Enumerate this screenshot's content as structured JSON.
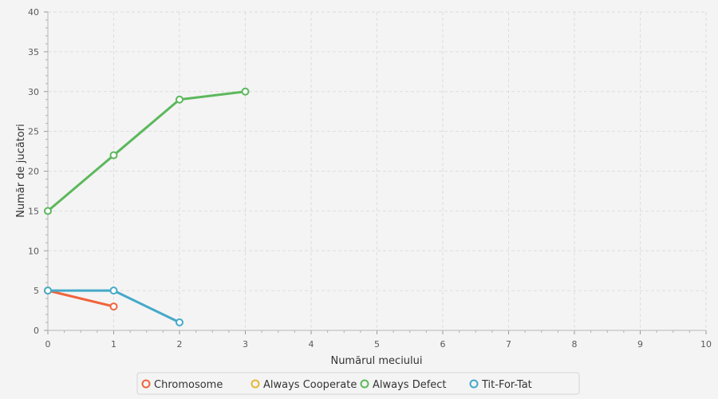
{
  "chart_data": {
    "type": "line",
    "xlabel": "Numărul meciului",
    "ylabel": "Număr de jucători",
    "xlim": [
      0,
      10
    ],
    "ylim": [
      0,
      40
    ],
    "x_ticks": [
      "0",
      "1",
      "2",
      "3",
      "4",
      "5",
      "6",
      "7",
      "8",
      "9",
      "10"
    ],
    "y_ticks": [
      "0",
      "5",
      "10",
      "15",
      "20",
      "25",
      "30",
      "35",
      "40"
    ],
    "grid": true,
    "legend_position": "bottom",
    "series": [
      {
        "name": "Chromosome",
        "color": "#f0643c",
        "points": [
          {
            "x": 0,
            "y": 5
          },
          {
            "x": 1,
            "y": 3
          }
        ]
      },
      {
        "name": "Always Cooperate",
        "color": "#e8b53a",
        "points": []
      },
      {
        "name": "Always Defect",
        "color": "#5cb85c",
        "points": [
          {
            "x": 0,
            "y": 15
          },
          {
            "x": 1,
            "y": 22
          },
          {
            "x": 2,
            "y": 29
          },
          {
            "x": 3,
            "y": 30
          }
        ]
      },
      {
        "name": "Tit-For-Tat",
        "color": "#45a9c8",
        "points": [
          {
            "x": 0,
            "y": 5
          },
          {
            "x": 1,
            "y": 5
          },
          {
            "x": 2,
            "y": 1
          }
        ]
      }
    ]
  }
}
